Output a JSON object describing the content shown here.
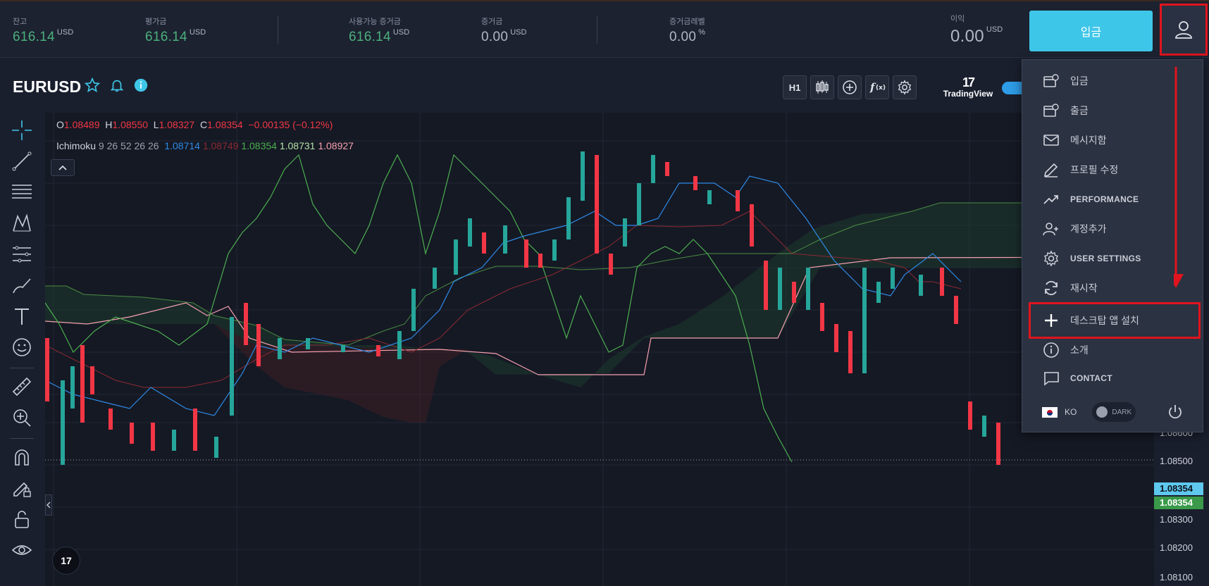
{
  "stats": [
    {
      "label": "잔고",
      "value": "616.14",
      "unit": "USD"
    },
    {
      "label": "평가금",
      "value": "616.14",
      "unit": "USD"
    },
    {
      "label": "사용가능 증거금",
      "value": "616.14",
      "unit": "USD"
    },
    {
      "label": "증거금",
      "value": "0.00",
      "unit": "USD"
    },
    {
      "label": "증거금레벨",
      "value": "0.00",
      "unit": "%"
    },
    {
      "label": "이익",
      "value": "0.00",
      "unit": "USD"
    }
  ],
  "deposit_button": "입금",
  "symbol": "EURUSD",
  "toolbar": {
    "interval": "H1"
  },
  "tradingview": {
    "mark": "17",
    "text": "TradingView"
  },
  "ohlc": {
    "o_label": "O",
    "o": "1.08489",
    "h_label": "H",
    "h": "1.08550",
    "l_label": "L",
    "l": "1.08327",
    "c_label": "C",
    "c": "1.08354",
    "change": "−0.00135 (−0.12%)"
  },
  "indicator": {
    "name": "Ichimoku",
    "params": "9 26 52 26 26",
    "v1": "1.08714",
    "v2": "1.08749",
    "v3": "1.08354",
    "v4": "1.08731",
    "v5": "1.08927"
  },
  "price_axis": {
    "labels": [
      "1.08600",
      "1.08500",
      "1.08300",
      "1.08200",
      "1.08100"
    ],
    "tag_blue": "1.08354",
    "tag_green": "1.08354"
  },
  "menu": {
    "items": [
      {
        "label": "입금",
        "icon": "deposit-icon"
      },
      {
        "label": "출금",
        "icon": "withdraw-icon"
      },
      {
        "label": "메시지함",
        "icon": "mail-icon"
      },
      {
        "label": "프로필 수정",
        "icon": "pencil-icon"
      },
      {
        "label": "PERFORMANCE",
        "icon": "trend-icon"
      },
      {
        "label": "계정추가",
        "icon": "add-user-icon"
      },
      {
        "label": "USER SETTINGS",
        "icon": "gear-icon"
      },
      {
        "label": "재시작",
        "icon": "refresh-icon"
      },
      {
        "label": "데스크탑 앱 설치",
        "icon": "plus-icon"
      },
      {
        "label": "소개",
        "icon": "info-icon"
      },
      {
        "label": "CONTACT",
        "icon": "chat-icon"
      }
    ],
    "language": "KO",
    "theme_toggle": "DARK"
  },
  "colors": {
    "accent": "#3ec6e8",
    "up": "#26a69a",
    "down": "#f23645",
    "highlight": "#e0141e"
  }
}
